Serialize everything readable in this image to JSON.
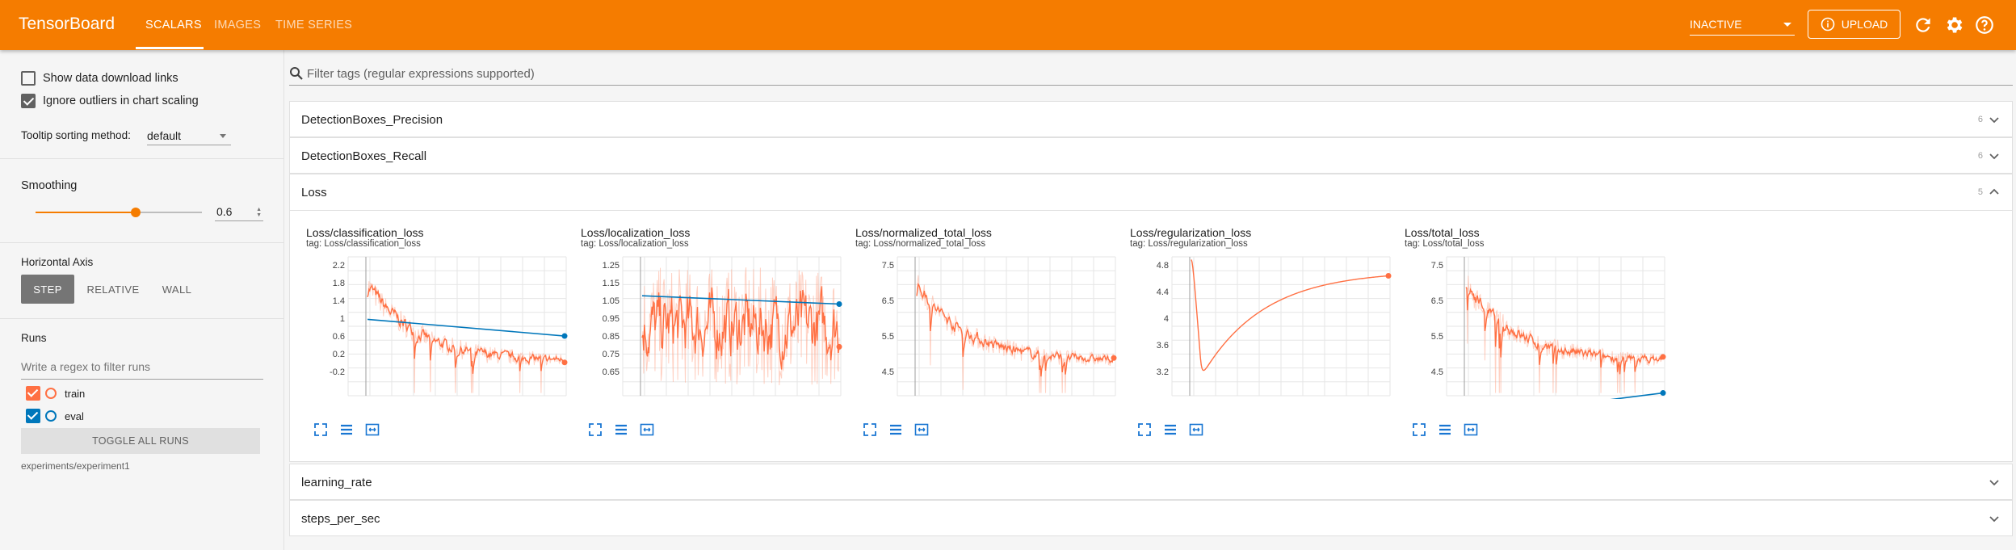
{
  "app": {
    "title": "TensorBoard",
    "tabs": [
      "SCALARS",
      "IMAGES",
      "TIME SERIES"
    ],
    "run_status": "INACTIVE",
    "upload_label": "UPLOAD",
    "accent": "#f57c00"
  },
  "sidebar": {
    "show_download_links": {
      "label": "Show data download links",
      "checked": false
    },
    "ignore_outliers": {
      "label": "Ignore outliers in chart scaling",
      "checked": true
    },
    "tooltip_label": "Tooltip sorting method:",
    "tooltip_value": "default",
    "smoothing_title": "Smoothing",
    "smoothing_value": "0.6",
    "horizontal_axis_title": "Horizontal Axis",
    "axis_options": [
      "STEP",
      "RELATIVE",
      "WALL"
    ],
    "axis_selected": "STEP",
    "runs_title": "Runs",
    "runs_filter_placeholder": "Write a regex to filter runs",
    "runs": [
      {
        "name": "train",
        "color": "#ff7043",
        "checked": true
      },
      {
        "name": "eval",
        "color": "#0077bb",
        "checked": true
      }
    ],
    "toggle_all_label": "TOGGLE ALL RUNS",
    "experiment_path": "experiments/experiment1"
  },
  "main": {
    "filter_placeholder": "Filter tags (regular expressions supported)",
    "groups": [
      {
        "name": "DetectionBoxes_Precision",
        "count": "6",
        "expanded": false
      },
      {
        "name": "DetectionBoxes_Recall",
        "count": "6",
        "expanded": false
      },
      {
        "name": "Loss",
        "count": "5",
        "expanded": true
      },
      {
        "name": "learning_rate",
        "count": "",
        "expanded": false
      },
      {
        "name": "steps_per_sec",
        "count": "",
        "expanded": false
      }
    ],
    "cards": [
      {
        "title": "Loss/classification_loss",
        "tag": "tag: Loss/classification_loss",
        "yticks": [
          "2.2",
          "1.8",
          "1.4",
          "1",
          "0.6",
          "0.2",
          "-0.2"
        ]
      },
      {
        "title": "Loss/localization_loss",
        "tag": "tag: Loss/localization_loss",
        "yticks": [
          "1.25",
          "1.15",
          "1.05",
          "0.95",
          "0.85",
          "0.75",
          "0.65"
        ]
      },
      {
        "title": "Loss/normalized_total_loss",
        "tag": "tag: Loss/normalized_total_loss",
        "yticks": [
          "7.5",
          "6.5",
          "5.5",
          "4.5"
        ]
      },
      {
        "title": "Loss/regularization_loss",
        "tag": "tag: Loss/regularization_loss",
        "yticks": [
          "4.8",
          "4.4",
          "4",
          "3.6",
          "3.2"
        ]
      },
      {
        "title": "Loss/total_loss",
        "tag": "tag: Loss/total_loss",
        "yticks": [
          "7.5",
          "6.5",
          "5.5",
          "4.5"
        ]
      }
    ]
  }
}
